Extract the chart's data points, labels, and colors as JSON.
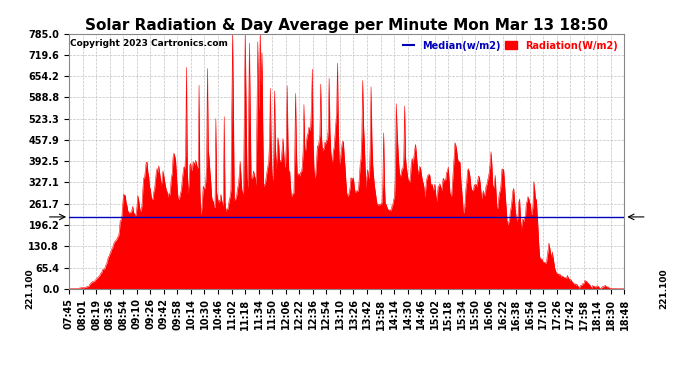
{
  "title": "Solar Radiation & Day Average per Minute Mon Mar 13 18:50",
  "copyright": "Copyright 2023 Cartronics.com",
  "legend_median_label": "Median(w/m2)",
  "legend_radiation_label": "Radiation(W/m2)",
  "median_value": 221.1,
  "ylim": [
    0,
    785.0
  ],
  "yticks": [
    0.0,
    65.4,
    130.8,
    196.2,
    261.7,
    327.1,
    392.5,
    457.9,
    523.3,
    588.8,
    654.2,
    719.6,
    785.0
  ],
  "background_color": "#ffffff",
  "plot_bg_color": "#ffffff",
  "radiation_color": "#ff0000",
  "median_color": "#0000bb",
  "grid_color": "#bbbbbb",
  "title_fontsize": 11,
  "tick_fontsize": 7,
  "xtick_labels": [
    "07:45",
    "08:01",
    "08:19",
    "08:36",
    "08:54",
    "09:10",
    "09:26",
    "09:42",
    "09:58",
    "10:14",
    "10:30",
    "10:46",
    "11:02",
    "11:18",
    "11:34",
    "11:50",
    "12:06",
    "12:22",
    "12:36",
    "12:54",
    "13:10",
    "13:26",
    "13:42",
    "13:58",
    "14:14",
    "14:30",
    "14:46",
    "15:02",
    "15:18",
    "15:34",
    "15:50",
    "16:06",
    "16:22",
    "16:38",
    "16:54",
    "17:10",
    "17:26",
    "17:42",
    "17:58",
    "18:14",
    "18:30",
    "18:48"
  ]
}
